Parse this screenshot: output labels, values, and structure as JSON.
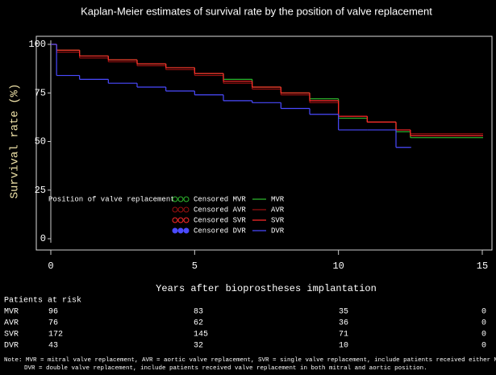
{
  "chart_data": {
    "type": "step",
    "title": "Kaplan-Meier estimates of survival rate by the position of valve replacement",
    "x_label": "Years after bioprostheses implantation",
    "y_label": "Survival rate (%)",
    "xlim": [
      0,
      15
    ],
    "xticks": [
      0,
      5,
      10,
      15
    ],
    "ylim": [
      0,
      100
    ],
    "yticks": [
      0,
      25,
      50,
      75,
      100
    ],
    "x": [
      0,
      0.2,
      1,
      2,
      3,
      4,
      5,
      6,
      7,
      8,
      9,
      10,
      11,
      12,
      12.5,
      15
    ],
    "series": [
      {
        "name": "MVR",
        "color": "#2eb82e",
        "values": [
          100,
          97,
          94,
          92,
          90,
          88,
          85,
          82,
          78,
          75,
          72,
          62,
          60,
          55,
          52,
          52
        ]
      },
      {
        "name": "AVR",
        "color": "#9a1010",
        "values": [
          100,
          96,
          93,
          91,
          89,
          87,
          84,
          80,
          77,
          74,
          70,
          63,
          60,
          56,
          54,
          54
        ]
      },
      {
        "name": "SVR",
        "color": "#ff2a2a",
        "values": [
          100,
          97,
          94,
          92,
          90,
          88,
          85,
          81,
          78,
          75,
          71,
          63,
          60,
          56,
          53,
          53
        ]
      },
      {
        "name": "DVR",
        "color": "#4a4aff",
        "values": [
          100,
          84,
          82,
          80,
          78,
          76,
          74,
          71,
          70,
          67,
          64,
          56,
          56,
          47,
          47,
          null
        ]
      }
    ],
    "legend": {
      "title": "Position of valve replacement",
      "censored_labels": [
        "Censored MVR",
        "Censored AVR",
        "Censored SVR",
        "Censored DVR"
      ]
    },
    "risk_table": {
      "title": "Patients at risk",
      "rows": [
        {
          "name": "MVR",
          "values": [
            96,
            83,
            35,
            0
          ]
        },
        {
          "name": "AVR",
          "values": [
            76,
            62,
            36,
            0
          ]
        },
        {
          "name": "SVR",
          "values": [
            172,
            145,
            71,
            0
          ]
        },
        {
          "name": "DVR",
          "values": [
            43,
            32,
            10,
            0
          ]
        }
      ]
    },
    "notes": [
      "Note: MVR = mitral valve replacement, AVR = aortic valve replacement, SVR = single valve replacement, include patients received either MVR or AVR.",
      "DVR = double valve replacement, include patients received valve replacement in both mitral and aortic position."
    ]
  }
}
